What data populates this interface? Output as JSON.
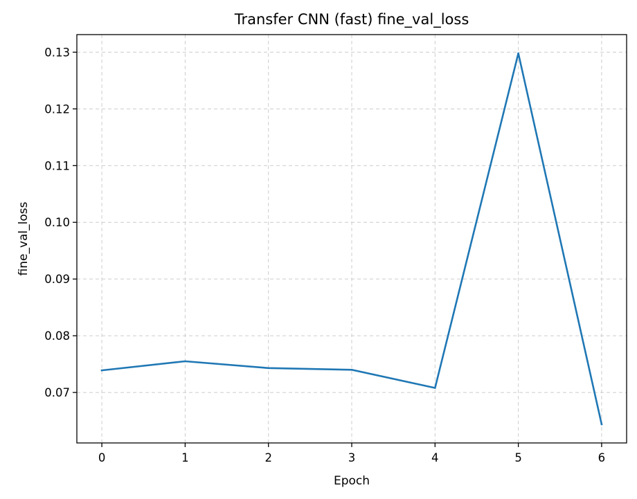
{
  "chart_data": {
    "type": "line",
    "title": "Transfer CNN (fast) fine_val_loss",
    "xlabel": "Epoch",
    "ylabel": "fine_val_loss",
    "x": [
      0,
      1,
      2,
      3,
      4,
      5,
      6
    ],
    "series": [
      {
        "values": [
          0.0739,
          0.0755,
          0.0743,
          0.074,
          0.0708,
          0.1298,
          0.0644
        ],
        "color": "#1f77b4"
      }
    ],
    "xticks": [
      0,
      1,
      2,
      3,
      4,
      5,
      6
    ],
    "yticks": [
      0.07,
      0.08,
      0.09,
      0.1,
      0.11,
      0.12,
      0.13
    ],
    "ytick_labels": [
      "0.07",
      "0.08",
      "0.09",
      "0.10",
      "0.11",
      "0.12",
      "0.13"
    ],
    "xlim": [
      -0.3,
      6.3
    ],
    "ylim": [
      0.0611,
      0.1331
    ],
    "grid": true,
    "grid_style": "dashed"
  }
}
